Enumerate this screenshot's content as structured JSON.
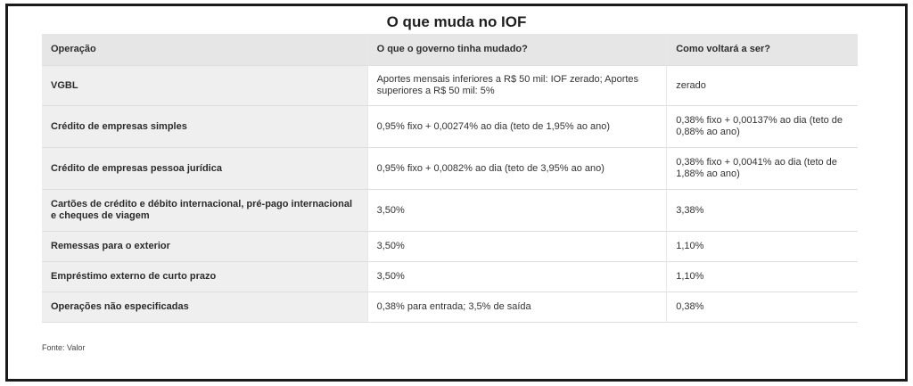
{
  "title": "O que muda no IOF",
  "headers": [
    "Operação",
    "O que o governo tinha mudado?",
    "Como voltará a ser?"
  ],
  "rows": [
    {
      "operation": "VGBL",
      "changed": "Aportes mensais inferiores a R$ 50 mil: IOF zerado; Aportes superiores a R$ 50 mil: 5%",
      "reverted": "zerado"
    },
    {
      "operation": "Crédito de empresas simples",
      "changed": "0,95% fixo + 0,00274% ao dia (teto de 1,95% ao ano)",
      "reverted": "0,38% fixo + 0,00137% ao dia (teto de 0,88% ao ano)"
    },
    {
      "operation": "Crédito de empresas pessoa jurídica",
      "changed": "0,95% fixo + 0,0082% ao dia (teto de 3,95% ao ano)",
      "reverted": "0,38% fixo + 0,0041% ao dia (teto de 1,88% ao ano)"
    },
    {
      "operation": "Cartões de crédito e débito internacional, pré-pago internacional e cheques de viagem",
      "changed": "3,50%",
      "reverted": "3,38%"
    },
    {
      "operation": "Remessas para o exterior",
      "changed": "3,50%",
      "reverted": "1,10%"
    },
    {
      "operation": "Empréstimo externo de curto prazo",
      "changed": "3,50%",
      "reverted": "1,10%"
    },
    {
      "operation": "Operações não especificadas",
      "changed": "0,38% para entrada; 3,5% de saída",
      "reverted": "0,38%"
    }
  ],
  "source": "Fonte: Valor"
}
